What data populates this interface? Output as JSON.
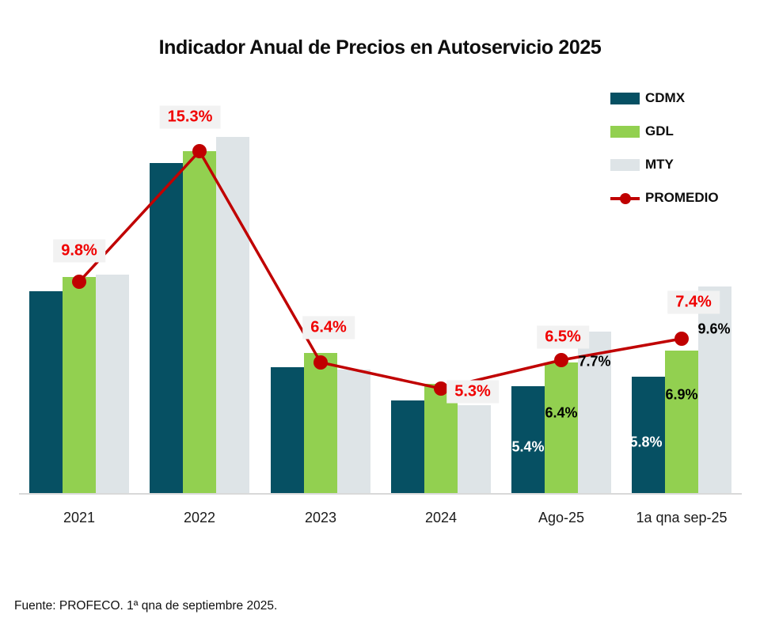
{
  "title": "Indicador Anual de Precios en Autoservicio 2025",
  "source_note": "Fuente: PROFECO. 1ª qna de septiembre 2025.",
  "colors": {
    "cdmx_bar": "#065063",
    "gdl_bar": "#92d050",
    "mty_bar": "#dee4e7",
    "promedio_line": "#c00000",
    "promedio_label_text": "#f00000",
    "promedio_label_bg": "#f2f2f2",
    "axis_line": "#d9d9d9"
  },
  "legend": {
    "items": [
      "CDMX",
      "GDL",
      "MTY",
      "PROMEDIO"
    ]
  },
  "chart_data": {
    "type": "bar",
    "title": "Indicador Anual de Precios en Autoservicio 2025",
    "xlabel": "",
    "ylabel": "",
    "grid": false,
    "y_axis_visible": false,
    "legend_position": "top-right",
    "categories": [
      "2021",
      "2022",
      "2023",
      "2024",
      "Ago-25",
      "1a qna sep-25"
    ],
    "series": [
      {
        "name": "CDMX",
        "type": "bar",
        "color": "#065063",
        "label_color": "#ffffff",
        "values": [
          9.4,
          14.8,
          6.2,
          4.8,
          5.4,
          5.8
        ],
        "labels": [
          null,
          null,
          null,
          null,
          "5.4%",
          "5.8%"
        ]
      },
      {
        "name": "GDL",
        "type": "bar",
        "color": "#92d050",
        "label_color": "#000000",
        "values": [
          10.0,
          15.3,
          6.8,
          5.5,
          6.4,
          6.9
        ],
        "labels": [
          null,
          null,
          null,
          null,
          "6.4%",
          "6.9%"
        ]
      },
      {
        "name": "MTY",
        "type": "bar",
        "color": "#dee4e7",
        "label_color": "#000000",
        "values": [
          10.1,
          15.9,
          6.1,
          4.6,
          7.7,
          9.6
        ],
        "labels": [
          null,
          null,
          null,
          null,
          "7.7%",
          "9.6%"
        ]
      },
      {
        "name": "PROMEDIO",
        "type": "line",
        "color": "#c00000",
        "values": [
          9.8,
          15.3,
          6.4,
          5.3,
          6.5,
          7.4
        ],
        "labels": [
          "9.8%",
          "15.3%",
          "6.4%",
          "5.3%",
          "6.5%",
          "7.4%"
        ]
      }
    ]
  }
}
